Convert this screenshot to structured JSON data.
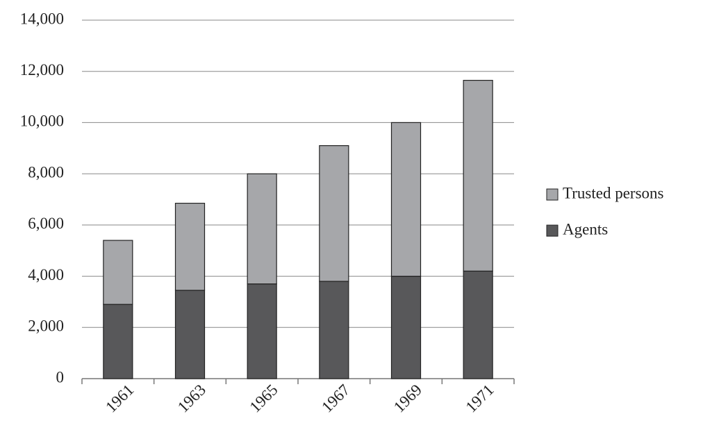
{
  "chart_data": {
    "type": "stacked-bar",
    "categories": [
      "1961",
      "1963",
      "1965",
      "1967",
      "1969",
      "1971"
    ],
    "series": [
      {
        "name": "Agents",
        "color": "#58585a",
        "values": [
          2900,
          3450,
          3700,
          3800,
          4000,
          4200
        ]
      },
      {
        "name": "Trusted persons",
        "color": "#a6a7aa",
        "values": [
          2500,
          3400,
          4300,
          5300,
          6000,
          7450
        ]
      }
    ],
    "ylim": [
      0,
      14000
    ],
    "yticks": [
      0,
      {
        "value": 2000,
        "label": "2,000"
      },
      {
        "value": 4000,
        "label": "4,000"
      },
      {
        "value": 6000,
        "label": "6,000"
      },
      {
        "value": 8000,
        "label": "8,000"
      },
      {
        "value": 10000,
        "label": "10,000"
      },
      {
        "value": 12000,
        "label": "12,000"
      },
      {
        "value": 14000,
        "label": "14,000"
      }
    ],
    "grid": true,
    "legend": "right"
  }
}
